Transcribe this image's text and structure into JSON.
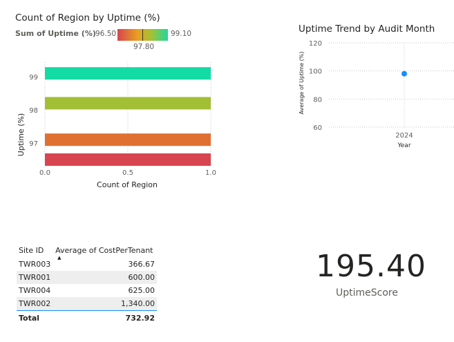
{
  "bar_visual": {
    "title": "Count of Region by Uptime (%)",
    "legend_label": "Sum of Uptime (%)",
    "legend_min": "96.50",
    "legend_max": "99.10",
    "legend_mid": "97.80",
    "gradient_colors": [
      "#d64550",
      "#e8a020",
      "#a8c030",
      "#20d8a0"
    ]
  },
  "line_visual": {
    "title": "Uptime Trend by Audit Month"
  },
  "table": {
    "col_site": "Site ID",
    "col_cost": "Average of CostPerTenant",
    "rows": [
      {
        "site": "TWR003",
        "cost": "366.67"
      },
      {
        "site": "TWR001",
        "cost": "600.00"
      },
      {
        "site": "TWR004",
        "cost": "625.00"
      },
      {
        "site": "TWR002",
        "cost": "1,340.00"
      }
    ],
    "total_label": "Total",
    "total_value": "732.92"
  },
  "kpi": {
    "value": "195.40",
    "label": "UptimeScore"
  },
  "chart_data": [
    {
      "type": "bar",
      "title": "Count of Region by Uptime (%)",
      "xlabel": "Count of Region",
      "ylabel": "Uptime (%)",
      "xlim": [
        0,
        1
      ],
      "x_ticks": [
        "0.0",
        "0.5",
        "1.0"
      ],
      "y_tick_labels": [
        "99",
        "98",
        "97"
      ],
      "bars": [
        {
          "uptime": 99.1,
          "value": 1,
          "color": "#13dba4"
        },
        {
          "uptime": 98.2,
          "value": 1,
          "color": "#a3bf35"
        },
        {
          "uptime": 97.1,
          "value": 1,
          "color": "#e07032"
        },
        {
          "uptime": 96.5,
          "value": 1,
          "color": "#d64550"
        }
      ],
      "grid": true
    },
    {
      "type": "scatter",
      "title": "Uptime Trend by Audit Month",
      "xlabel": "Year",
      "ylabel": "Average of Uptime (%)",
      "ylim": [
        60,
        120
      ],
      "y_ticks": [
        "60",
        "80",
        "100",
        "120"
      ],
      "x_ticks": [
        "2024"
      ],
      "points": [
        {
          "x": "2024",
          "y": 98
        }
      ],
      "color": "#118dff",
      "grid": true
    }
  ]
}
